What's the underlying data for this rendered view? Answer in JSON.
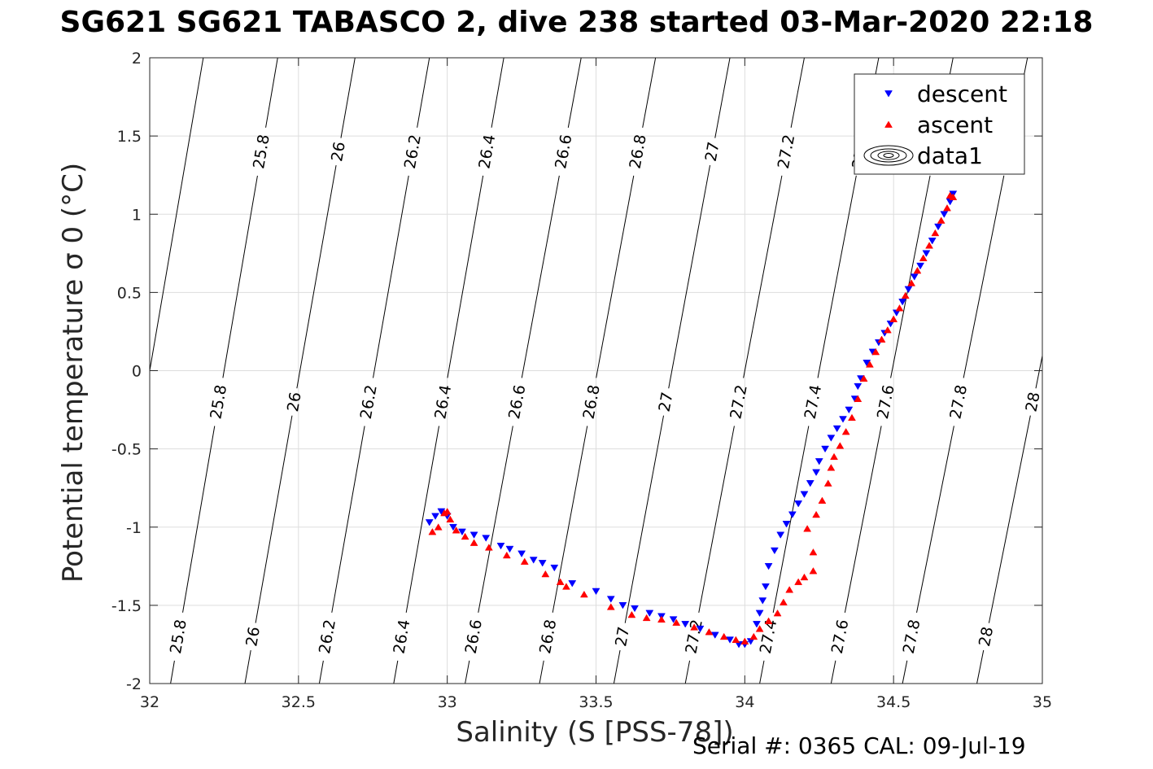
{
  "title": "SG621 SG621 TABASCO 2, dive 238 started 03-Mar-2020 22:18",
  "footnote": "Serial #: 0365  CAL: 09-Jul-19",
  "chart_data": {
    "type": "scatter",
    "xlabel": "Salinity (S [PSS-78])",
    "ylabel": "Potential temperature σ 0 (°C)",
    "xlim": [
      32,
      35
    ],
    "ylim": [
      -2,
      2
    ],
    "xticks": [
      32,
      32.5,
      33,
      33.5,
      34,
      34.5,
      35
    ],
    "xtick_labels": [
      "32",
      "32.5",
      "33",
      "33.5",
      "34",
      "34.5",
      "35"
    ],
    "yticks": [
      -2,
      -1.5,
      -1,
      -0.5,
      0,
      0.5,
      1,
      1.5,
      2
    ],
    "ytick_labels": [
      "-2",
      "-1.5",
      "-1",
      "-0.5",
      "0",
      "0.5",
      "1",
      "1.5",
      "2"
    ],
    "grid": true,
    "legend": {
      "placement": "top-right",
      "entries": [
        {
          "label": "descent",
          "marker": "triangle-down",
          "color": "#0000ff"
        },
        {
          "label": "ascent",
          "marker": "triangle-up",
          "color": "#ff0000"
        },
        {
          "label": "data1",
          "marker": "contour",
          "color": "#000000"
        }
      ]
    },
    "contours": {
      "name": "data1",
      "levels": [
        25.8,
        26,
        26.2,
        26.4,
        26.6,
        26.8,
        27,
        27.2,
        27.4,
        27.6,
        27.8,
        28
      ],
      "labels": [
        "25.8",
        "26",
        "26.2",
        "26.4",
        "26.6",
        "26.8",
        "27",
        "27.2",
        "27.4",
        "27.6",
        "27.8",
        "28"
      ],
      "lines": [
        {
          "label": "25.8",
          "s_bottom": 32.07,
          "s_top": 32.43
        },
        {
          "label": "26",
          "s_bottom": 32.32,
          "s_top": 32.69
        },
        {
          "label": "26.2",
          "s_bottom": 32.57,
          "s_top": 32.94
        },
        {
          "label": "26.4",
          "s_bottom": 32.82,
          "s_top": 33.19
        },
        {
          "label": "26.6",
          "s_bottom": 33.06,
          "s_top": 33.45
        },
        {
          "label": "26.8",
          "s_bottom": 33.31,
          "s_top": 33.7
        },
        {
          "label": "27",
          "s_bottom": 33.56,
          "s_top": 33.95
        },
        {
          "label": "27.2",
          "s_bottom": 33.8,
          "s_top": 34.2
        },
        {
          "label": "27.4",
          "s_bottom": 34.05,
          "s_top": 34.45
        },
        {
          "label": "27.6",
          "s_bottom": 34.29,
          "s_top": 34.7
        },
        {
          "label": "27.8",
          "s_bottom": 34.53,
          "s_top": 34.95
        },
        {
          "label": "28",
          "s_bottom": 34.78,
          "s_top": 35.2
        }
      ],
      "leftmost_line": {
        "s_bottom": 31.82,
        "s_top": 32.18
      }
    },
    "series": [
      {
        "name": "descent",
        "marker": "triangle-down",
        "color": "#0000ff",
        "points": [
          [
            32.94,
            -0.97
          ],
          [
            32.96,
            -0.93
          ],
          [
            32.98,
            -0.9
          ],
          [
            33.0,
            -0.93
          ],
          [
            33.02,
            -1.0
          ],
          [
            33.05,
            -1.03
          ],
          [
            33.09,
            -1.05
          ],
          [
            33.13,
            -1.07
          ],
          [
            33.18,
            -1.12
          ],
          [
            33.21,
            -1.14
          ],
          [
            33.25,
            -1.17
          ],
          [
            33.29,
            -1.21
          ],
          [
            33.32,
            -1.23
          ],
          [
            33.36,
            -1.26
          ],
          [
            33.42,
            -1.36
          ],
          [
            33.5,
            -1.41
          ],
          [
            33.55,
            -1.46
          ],
          [
            33.59,
            -1.5
          ],
          [
            33.63,
            -1.52
          ],
          [
            33.68,
            -1.55
          ],
          [
            33.72,
            -1.57
          ],
          [
            33.76,
            -1.59
          ],
          [
            33.8,
            -1.62
          ],
          [
            33.85,
            -1.65
          ],
          [
            33.9,
            -1.69
          ],
          [
            33.95,
            -1.72
          ],
          [
            33.98,
            -1.75
          ],
          [
            34.0,
            -1.75
          ],
          [
            34.02,
            -1.73
          ],
          [
            34.04,
            -1.62
          ],
          [
            34.05,
            -1.55
          ],
          [
            34.06,
            -1.47
          ],
          [
            34.07,
            -1.38
          ],
          [
            34.08,
            -1.25
          ],
          [
            34.1,
            -1.15
          ],
          [
            34.12,
            -1.05
          ],
          [
            34.14,
            -0.98
          ],
          [
            34.16,
            -0.92
          ],
          [
            34.18,
            -0.85
          ],
          [
            34.2,
            -0.79
          ],
          [
            34.22,
            -0.72
          ],
          [
            34.24,
            -0.65
          ],
          [
            34.25,
            -0.58
          ],
          [
            34.27,
            -0.5
          ],
          [
            34.29,
            -0.43
          ],
          [
            34.31,
            -0.37
          ],
          [
            34.33,
            -0.31
          ],
          [
            34.35,
            -0.25
          ],
          [
            34.37,
            -0.18
          ],
          [
            34.38,
            -0.1
          ],
          [
            34.39,
            -0.05
          ],
          [
            34.41,
            0.05
          ],
          [
            34.43,
            0.12
          ],
          [
            34.45,
            0.18
          ],
          [
            34.47,
            0.24
          ],
          [
            34.49,
            0.3
          ],
          [
            34.51,
            0.37
          ],
          [
            34.53,
            0.44
          ],
          [
            34.55,
            0.52
          ],
          [
            34.57,
            0.6
          ],
          [
            34.59,
            0.67
          ],
          [
            34.61,
            0.75
          ],
          [
            34.63,
            0.83
          ],
          [
            34.65,
            0.92
          ],
          [
            34.67,
            1.0
          ],
          [
            34.69,
            1.08
          ],
          [
            34.7,
            1.13
          ]
        ]
      },
      {
        "name": "ascent",
        "marker": "triangle-up",
        "color": "#ff0000",
        "points": [
          [
            32.95,
            -1.03
          ],
          [
            32.97,
            -1.0
          ],
          [
            32.99,
            -0.91
          ],
          [
            33.0,
            -0.9
          ],
          [
            33.01,
            -0.95
          ],
          [
            33.03,
            -1.02
          ],
          [
            33.06,
            -1.06
          ],
          [
            33.09,
            -1.1
          ],
          [
            33.14,
            -1.13
          ],
          [
            33.2,
            -1.18
          ],
          [
            33.26,
            -1.22
          ],
          [
            33.33,
            -1.3
          ],
          [
            33.38,
            -1.35
          ],
          [
            33.4,
            -1.38
          ],
          [
            33.46,
            -1.43
          ],
          [
            33.55,
            -1.51
          ],
          [
            33.62,
            -1.56
          ],
          [
            33.67,
            -1.58
          ],
          [
            33.72,
            -1.59
          ],
          [
            33.77,
            -1.61
          ],
          [
            33.83,
            -1.64
          ],
          [
            33.88,
            -1.67
          ],
          [
            33.93,
            -1.7
          ],
          [
            33.97,
            -1.72
          ],
          [
            34.0,
            -1.73
          ],
          [
            34.03,
            -1.7
          ],
          [
            34.05,
            -1.65
          ],
          [
            34.08,
            -1.6
          ],
          [
            34.11,
            -1.55
          ],
          [
            34.13,
            -1.48
          ],
          [
            34.15,
            -1.4
          ],
          [
            34.18,
            -1.35
          ],
          [
            34.2,
            -1.32
          ],
          [
            34.23,
            -1.28
          ],
          [
            34.23,
            -1.16
          ],
          [
            34.21,
            -1.01
          ],
          [
            34.24,
            -0.92
          ],
          [
            34.26,
            -0.83
          ],
          [
            34.28,
            -0.72
          ],
          [
            34.29,
            -0.62
          ],
          [
            34.3,
            -0.55
          ],
          [
            34.32,
            -0.48
          ],
          [
            34.34,
            -0.39
          ],
          [
            34.36,
            -0.3
          ],
          [
            34.38,
            -0.18
          ],
          [
            34.4,
            -0.05
          ],
          [
            34.42,
            0.04
          ],
          [
            34.44,
            0.12
          ],
          [
            34.46,
            0.2
          ],
          [
            34.48,
            0.26
          ],
          [
            34.5,
            0.33
          ],
          [
            34.52,
            0.4
          ],
          [
            34.54,
            0.48
          ],
          [
            34.56,
            0.56
          ],
          [
            34.58,
            0.64
          ],
          [
            34.6,
            0.72
          ],
          [
            34.62,
            0.8
          ],
          [
            34.64,
            0.88
          ],
          [
            34.66,
            0.96
          ],
          [
            34.68,
            1.04
          ],
          [
            34.7,
            1.11
          ],
          [
            34.69,
            1.12
          ]
        ]
      }
    ]
  }
}
